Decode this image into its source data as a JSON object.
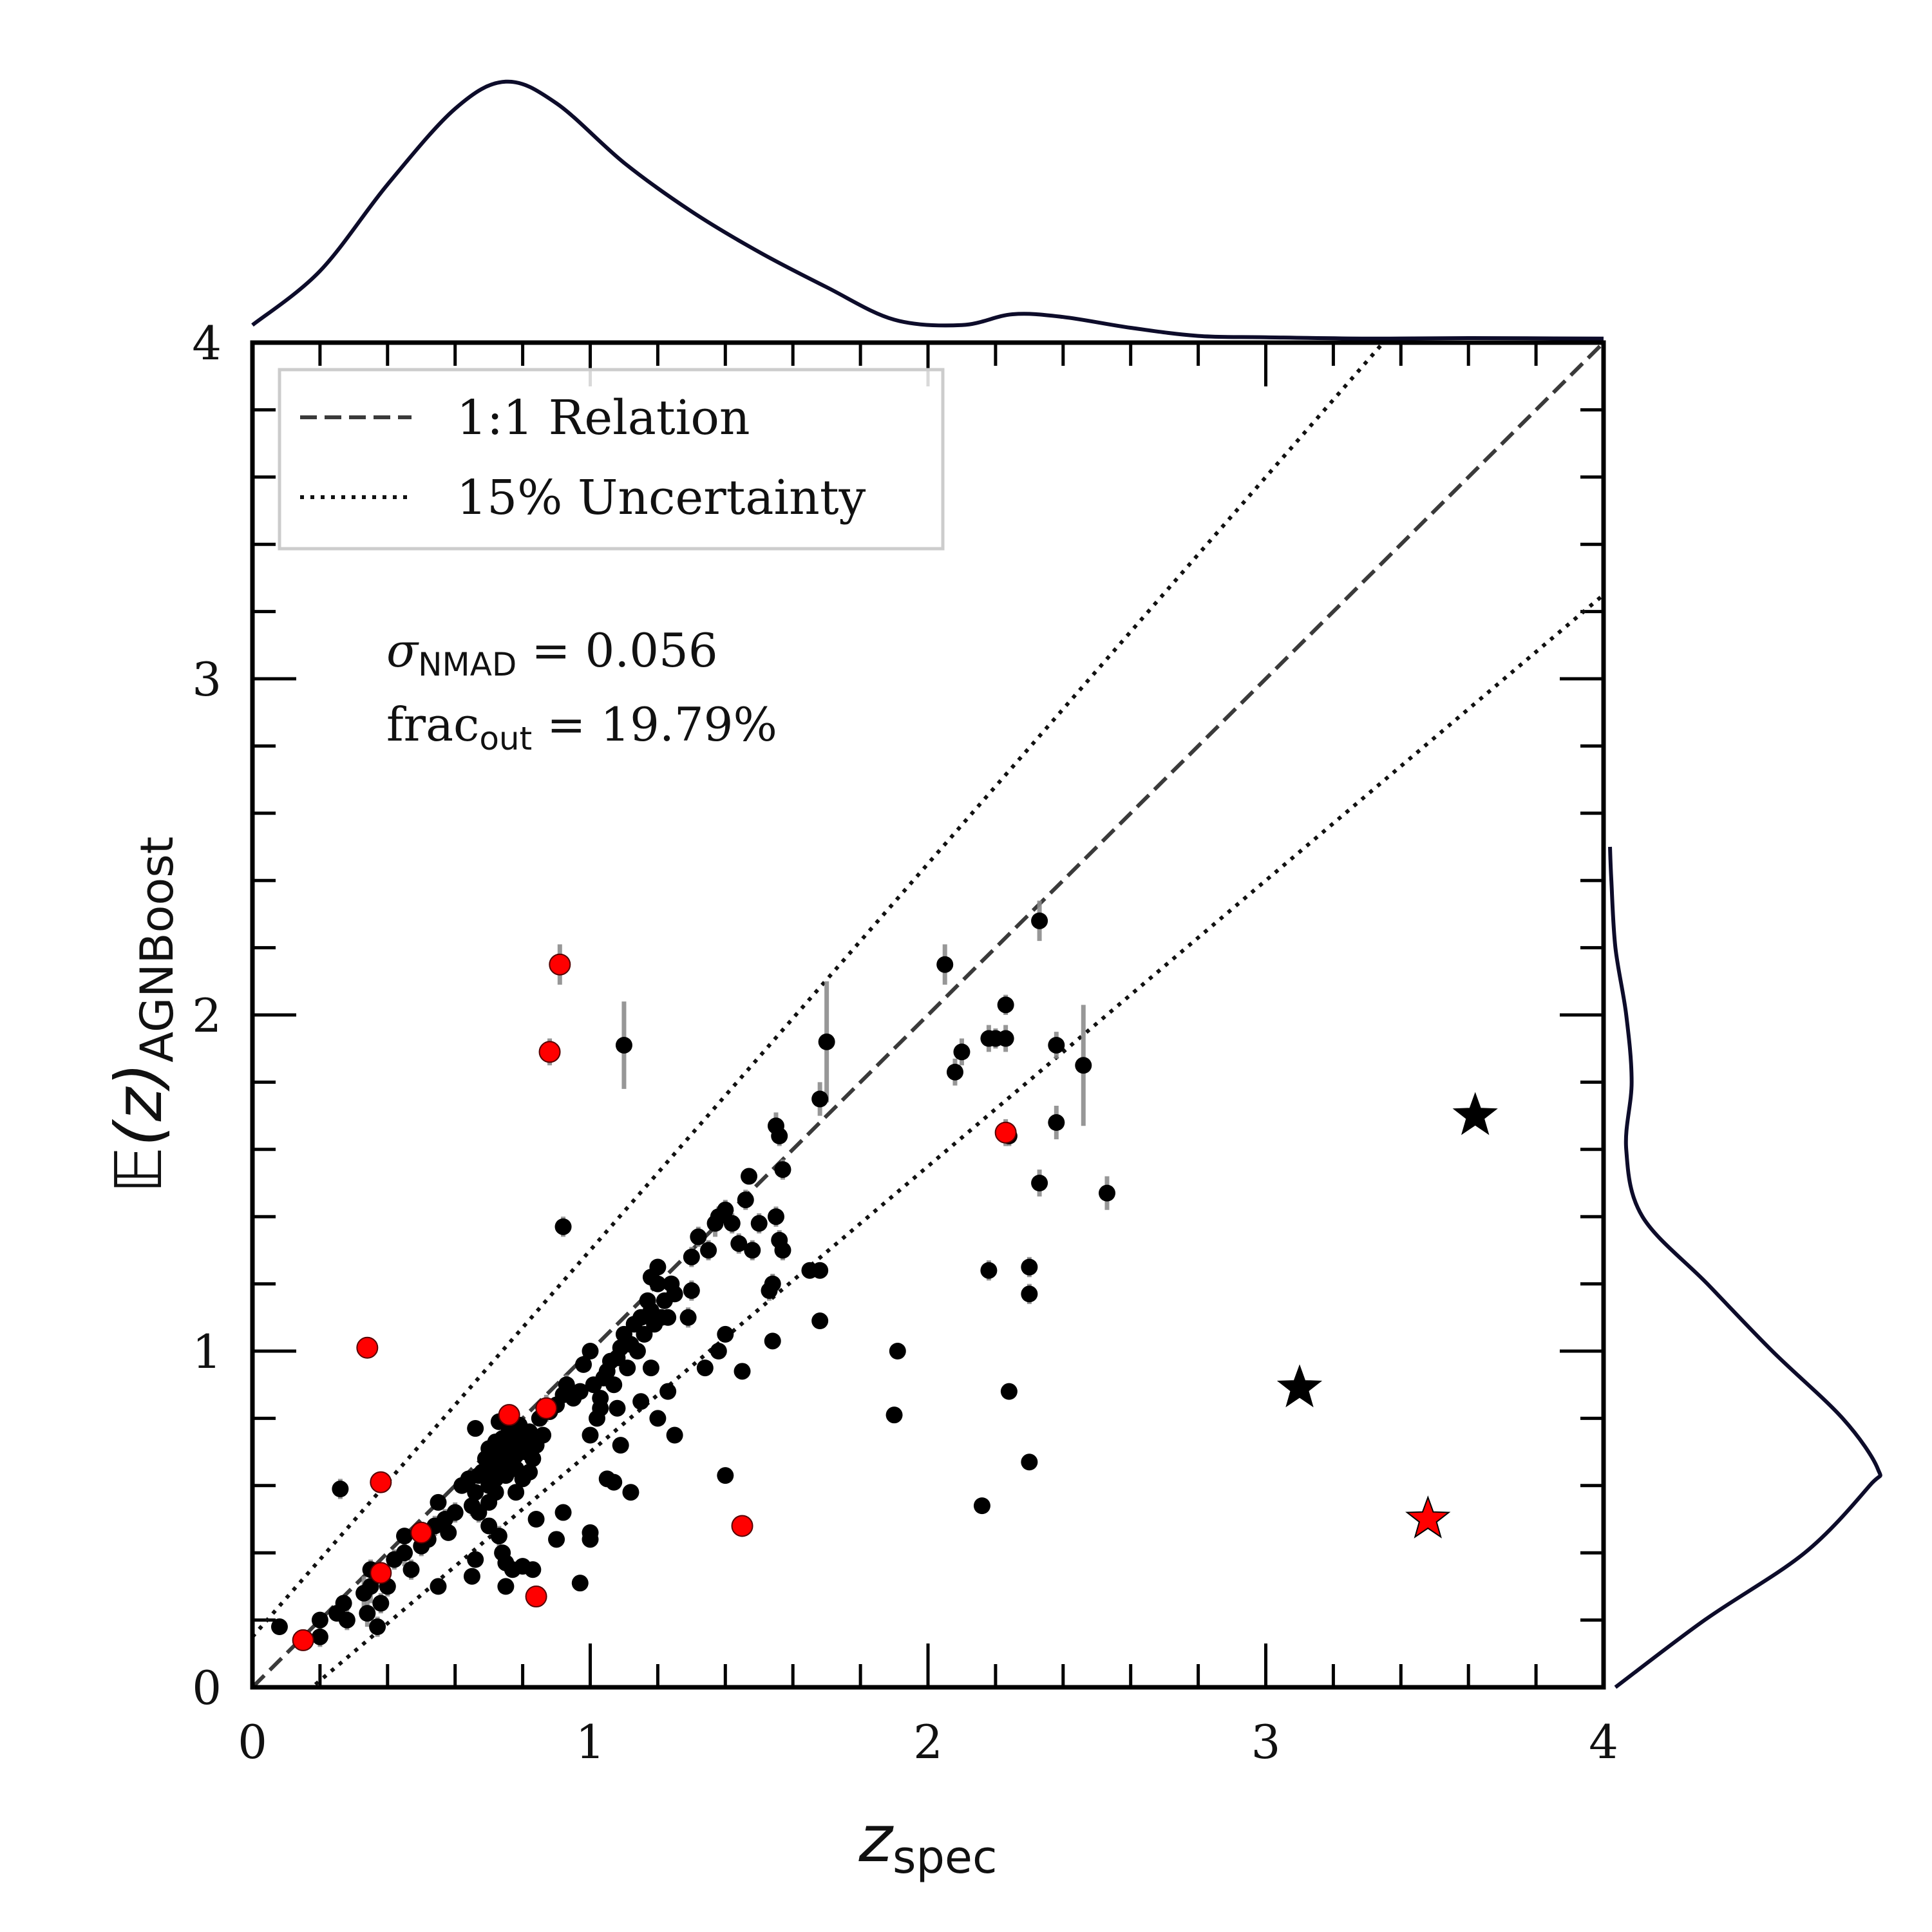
{
  "chart_data": {
    "type": "scatter",
    "title": "",
    "xlabel": {
      "main": "z",
      "sub": "spec"
    },
    "ylabel": {
      "main": "𝔼(z)",
      "sub": "AGNBoost"
    },
    "xlim": [
      0,
      4
    ],
    "ylim": [
      0,
      4
    ],
    "xticks": [
      0,
      1,
      2,
      3,
      4
    ],
    "yticks": [
      0,
      1,
      2,
      3,
      4
    ],
    "xtick_labels": [
      "0",
      "1",
      "2",
      "3",
      "4"
    ],
    "ytick_labels": [
      "0",
      "1",
      "2",
      "3",
      "4"
    ],
    "minor_step": 0.2,
    "legend": {
      "position": "top-left",
      "entries": [
        {
          "label": "1:1 Relation",
          "style": "dashed"
        },
        {
          "label": "15% Uncertainty",
          "style": "dotted"
        }
      ]
    },
    "annotations": [
      {
        "symbol": "σ",
        "sub": "NMAD",
        "text": " = 0.056"
      },
      {
        "symbol": "frac",
        "sub": "out",
        "text": " = 19.79%"
      }
    ],
    "reference_lines": [
      {
        "name": "1:1 Relation",
        "slope": 1.0,
        "intercept": 0
      },
      {
        "name": "15% upper",
        "slope": 1.0,
        "intercept": 0.15,
        "scale": 1.15
      },
      {
        "name": "15% lower",
        "slope": 1.0,
        "intercept": -0.15,
        "scale": 1.15
      }
    ],
    "colors": {
      "normal": "#000000",
      "red": "#ff0000",
      "errorbar": "#8c8c8c",
      "kde": "#0d0c2a",
      "dashed": "#3a3a3a"
    },
    "series": [
      {
        "name": "black points",
        "marker": "circle",
        "color": "#000000",
        "points": [
          [
            0.08,
            0.18,
            0.02
          ],
          [
            0.2,
            0.2,
            0.02
          ],
          [
            0.2,
            0.15,
            0.03
          ],
          [
            0.25,
            0.22,
            0.02
          ],
          [
            0.27,
            0.25,
            0.02
          ],
          [
            0.28,
            0.2,
            0.03
          ],
          [
            0.26,
            0.59,
            0.03
          ],
          [
            0.33,
            0.28,
            0.05
          ],
          [
            0.34,
            0.22,
            0.04
          ],
          [
            0.35,
            0.3,
            0.05
          ],
          [
            0.35,
            0.35,
            0.03
          ],
          [
            0.37,
            0.18,
            0.03
          ],
          [
            0.38,
            0.25,
            0.03
          ],
          [
            0.4,
            0.3,
            0.03
          ],
          [
            0.42,
            0.38,
            0.03
          ],
          [
            0.45,
            0.4,
            0.04
          ],
          [
            0.45,
            0.45,
            0.02
          ],
          [
            0.47,
            0.35,
            0.03
          ],
          [
            0.5,
            0.42,
            0.03
          ],
          [
            0.52,
            0.44,
            0.02
          ],
          [
            0.54,
            0.48,
            0.03
          ],
          [
            0.55,
            0.55,
            0.02
          ],
          [
            0.55,
            0.3,
            0.02
          ],
          [
            0.57,
            0.5,
            0.03
          ],
          [
            0.58,
            0.46,
            0.02
          ],
          [
            0.6,
            0.52,
            0.03
          ],
          [
            0.62,
            0.6,
            0.02
          ],
          [
            0.64,
            0.62,
            0.02
          ],
          [
            0.65,
            0.54,
            0.03
          ],
          [
            0.66,
            0.58,
            0.02
          ],
          [
            0.66,
            0.77,
            0.02
          ],
          [
            0.67,
            0.63,
            0.02
          ],
          [
            0.68,
            0.64,
            0.02
          ],
          [
            0.69,
            0.68,
            0.02
          ],
          [
            0.7,
            0.6,
            0.02
          ],
          [
            0.7,
            0.71,
            0.02
          ],
          [
            0.71,
            0.66,
            0.02
          ],
          [
            0.72,
            0.73,
            0.02
          ],
          [
            0.72,
            0.62,
            0.02
          ],
          [
            0.73,
            0.69,
            0.02
          ],
          [
            0.73,
            0.79,
            0.02
          ],
          [
            0.74,
            0.65,
            0.02
          ],
          [
            0.74,
            0.74,
            0.02
          ],
          [
            0.75,
            0.7,
            0.02
          ],
          [
            0.75,
            0.63,
            0.02
          ],
          [
            0.76,
            0.67,
            0.02
          ],
          [
            0.76,
            0.76,
            0.02
          ],
          [
            0.77,
            0.72,
            0.02
          ],
          [
            0.78,
            0.65,
            0.02
          ],
          [
            0.78,
            0.69,
            0.02
          ],
          [
            0.79,
            0.78,
            0.02
          ],
          [
            0.8,
            0.74,
            0.02
          ],
          [
            0.8,
            0.62,
            0.02
          ],
          [
            0.81,
            0.7,
            0.02
          ],
          [
            0.82,
            0.76,
            0.02
          ],
          [
            0.83,
            0.68,
            0.02
          ],
          [
            0.84,
            0.72,
            0.02
          ],
          [
            0.85,
            0.8,
            0.02
          ],
          [
            0.86,
            0.75,
            0.02
          ],
          [
            0.88,
            0.82,
            0.02
          ],
          [
            0.67,
            0.52,
            0.03
          ],
          [
            0.7,
            0.55,
            0.02
          ],
          [
            0.72,
            0.58,
            0.02
          ],
          [
            0.73,
            0.45,
            0.03
          ],
          [
            0.74,
            0.4,
            0.02
          ],
          [
            0.7,
            0.48,
            0.02
          ],
          [
            0.66,
            0.38,
            0.02
          ],
          [
            0.65,
            0.33,
            0.02
          ],
          [
            0.75,
            0.37,
            0.02
          ],
          [
            0.77,
            0.35,
            0.02
          ],
          [
            0.8,
            0.36,
            0.02
          ],
          [
            0.83,
            0.35,
            0.02
          ],
          [
            0.75,
            0.3,
            0.02
          ],
          [
            0.78,
            0.58,
            0.02
          ],
          [
            0.82,
            0.64,
            0.02
          ],
          [
            0.84,
            0.5,
            0.02
          ],
          [
            0.9,
            0.44,
            0.02
          ],
          [
            0.92,
            0.52,
            0.02
          ],
          [
            0.92,
            1.37,
            0.03
          ],
          [
            0.9,
            0.84,
            0.02
          ],
          [
            0.92,
            0.87,
            0.02
          ],
          [
            0.93,
            0.9,
            0.03
          ],
          [
            0.95,
            0.86,
            0.02
          ],
          [
            0.97,
            0.88,
            0.02
          ],
          [
            0.98,
            0.96,
            0.02
          ],
          [
            1.0,
            1.0,
            0.02
          ],
          [
            1.01,
            0.9,
            0.02
          ],
          [
            1.02,
            0.8,
            0.02
          ],
          [
            1.03,
            0.86,
            0.02
          ],
          [
            1.04,
            0.92,
            0.02
          ],
          [
            1.05,
            0.94,
            0.02
          ],
          [
            1.06,
            0.97,
            0.02
          ],
          [
            1.07,
            0.9,
            0.02
          ],
          [
            1.08,
            0.98,
            0.02
          ],
          [
            1.09,
            1.01,
            0.02
          ],
          [
            1.1,
            1.05,
            0.02
          ],
          [
            1.11,
            0.95,
            0.02
          ],
          [
            1.12,
            1.02,
            0.02
          ],
          [
            1.13,
            1.08,
            0.02
          ],
          [
            1.14,
            1.0,
            0.02
          ],
          [
            1.15,
            1.1,
            0.02
          ],
          [
            1.16,
            1.05,
            0.02
          ],
          [
            1.17,
            1.15,
            0.02
          ],
          [
            1.18,
            1.12,
            0.02
          ],
          [
            1.19,
            1.08,
            0.02
          ],
          [
            1.2,
            1.2,
            0.02
          ],
          [
            1.21,
            1.1,
            0.02
          ],
          [
            1.22,
            1.15,
            0.02
          ],
          [
            1.23,
            1.1,
            0.02
          ],
          [
            1.24,
            1.2,
            0.02
          ],
          [
            1.25,
            1.17,
            0.02
          ],
          [
            1.18,
            1.22,
            0.02
          ],
          [
            1.2,
            1.25,
            0.02
          ],
          [
            1.0,
            0.75,
            0.02
          ],
          [
            1.03,
            0.83,
            0.02
          ],
          [
            1.05,
            0.62,
            0.02
          ],
          [
            1.07,
            0.61,
            0.02
          ],
          [
            1.08,
            0.83,
            0.02
          ],
          [
            1.09,
            0.72,
            0.02
          ],
          [
            1.12,
            0.58,
            0.02
          ],
          [
            1.15,
            0.85,
            0.02
          ],
          [
            1.18,
            0.95,
            0.02
          ],
          [
            1.2,
            0.8,
            0.02
          ],
          [
            1.23,
            0.88,
            0.02
          ],
          [
            1.25,
            0.75,
            0.02
          ],
          [
            1.0,
            0.46,
            0.02
          ],
          [
            1.0,
            0.44,
            0.02
          ],
          [
            0.97,
            0.31,
            0.02
          ],
          [
            1.1,
            1.91,
            0.13
          ],
          [
            1.32,
            1.34,
            0.03
          ],
          [
            1.35,
            1.3,
            0.03
          ],
          [
            1.37,
            1.38,
            0.04
          ],
          [
            1.38,
            1.4,
            0.03
          ],
          [
            1.4,
            1.42,
            0.03
          ],
          [
            1.42,
            1.38,
            0.03
          ],
          [
            1.44,
            1.32,
            0.03
          ],
          [
            1.46,
            1.45,
            0.03
          ],
          [
            1.47,
            1.52,
            0.02
          ],
          [
            1.48,
            1.3,
            0.03
          ],
          [
            1.5,
            1.38,
            0.03
          ],
          [
            1.55,
            1.67,
            0.04
          ],
          [
            1.56,
            1.64,
            0.03
          ],
          [
            1.57,
            1.54,
            0.03
          ],
          [
            1.55,
            1.4,
            0.03
          ],
          [
            1.56,
            1.33,
            0.03
          ],
          [
            1.57,
            1.3,
            0.03
          ],
          [
            1.54,
            1.2,
            0.03
          ],
          [
            1.53,
            1.18,
            0.03
          ],
          [
            1.54,
            1.03,
            0.02
          ],
          [
            1.45,
            0.94,
            0.02
          ],
          [
            1.4,
            1.05,
            0.02
          ],
          [
            1.38,
            1.0,
            0.02
          ],
          [
            1.34,
            0.95,
            0.02
          ],
          [
            1.3,
            1.28,
            0.03
          ],
          [
            1.3,
            1.18,
            0.03
          ],
          [
            1.29,
            1.1,
            0.03
          ],
          [
            1.4,
            0.63,
            0.02
          ],
          [
            1.65,
            1.24,
            0.02
          ],
          [
            1.68,
            1.24,
            0.02
          ],
          [
            1.68,
            1.09,
            0.02
          ],
          [
            1.7,
            1.92,
            0.18
          ],
          [
            1.68,
            1.75,
            0.05
          ],
          [
            1.9,
            0.81,
            0.02
          ],
          [
            1.91,
            1.0,
            0.02
          ],
          [
            2.05,
            2.15,
            0.06
          ],
          [
            2.08,
            1.83,
            0.04
          ],
          [
            2.1,
            1.89,
            0.04
          ],
          [
            2.18,
            1.93,
            0.04
          ],
          [
            2.2,
            1.93,
            0.03
          ],
          [
            2.23,
            1.93,
            0.04
          ],
          [
            2.23,
            2.03,
            0.03
          ],
          [
            2.24,
            1.64,
            0.03
          ],
          [
            2.18,
            1.24,
            0.03
          ],
          [
            2.3,
            1.25,
            0.03
          ],
          [
            2.3,
            1.17,
            0.03
          ],
          [
            2.24,
            0.88,
            0.02
          ],
          [
            2.3,
            0.67,
            0.02
          ],
          [
            2.16,
            0.54,
            0.02
          ],
          [
            2.33,
            1.5,
            0.04
          ],
          [
            2.38,
            1.91,
            0.04
          ],
          [
            2.38,
            1.68,
            0.05
          ],
          [
            2.46,
            1.85,
            0.18
          ],
          [
            2.53,
            1.47,
            0.05
          ],
          [
            2.33,
            2.28,
            0.06
          ]
        ]
      },
      {
        "name": "red points",
        "marker": "circle",
        "color": "#ff0000",
        "points": [
          [
            0.15,
            0.14,
            0.01
          ],
          [
            0.34,
            1.01,
            0.02
          ],
          [
            0.38,
            0.61,
            0.02
          ],
          [
            0.38,
            0.34,
            0.02
          ],
          [
            0.5,
            0.46,
            0.02
          ],
          [
            0.76,
            0.81,
            0.03
          ],
          [
            0.84,
            0.27,
            0.02
          ],
          [
            0.87,
            0.83,
            0.04
          ],
          [
            0.88,
            1.89,
            0.04
          ],
          [
            0.91,
            2.15,
            0.06
          ],
          [
            1.45,
            0.48,
            0.02
          ],
          [
            2.23,
            1.65,
            0.04
          ]
        ]
      },
      {
        "name": "stars",
        "marker": "star",
        "points": [
          [
            3.1,
            0.89,
            "#000000"
          ],
          [
            3.62,
            1.7,
            "#000000"
          ],
          [
            3.48,
            0.5,
            "#ff0000"
          ]
        ]
      }
    ],
    "kde_top": {
      "x": [
        0,
        0.2,
        0.4,
        0.6,
        0.75,
        0.9,
        1.1,
        1.3,
        1.5,
        1.7,
        1.9,
        2.1,
        2.25,
        2.4,
        2.6,
        2.8,
        3.0,
        3.3,
        3.6,
        4.0
      ],
      "density": [
        0.06,
        0.26,
        0.58,
        0.86,
        0.96,
        0.88,
        0.66,
        0.48,
        0.33,
        0.2,
        0.08,
        0.06,
        0.1,
        0.09,
        0.05,
        0.02,
        0.015,
        0.01,
        0.012,
        0.01
      ]
    },
    "kde_right": {
      "y": [
        0,
        0.2,
        0.4,
        0.6,
        0.65,
        0.8,
        1.0,
        1.2,
        1.4,
        1.6,
        1.8,
        2.0,
        2.2,
        2.4,
        2.5
      ],
      "density": [
        0.02,
        0.35,
        0.72,
        0.96,
        0.99,
        0.86,
        0.6,
        0.36,
        0.12,
        0.06,
        0.08,
        0.06,
        0.02,
        0.005,
        0.0
      ]
    }
  }
}
